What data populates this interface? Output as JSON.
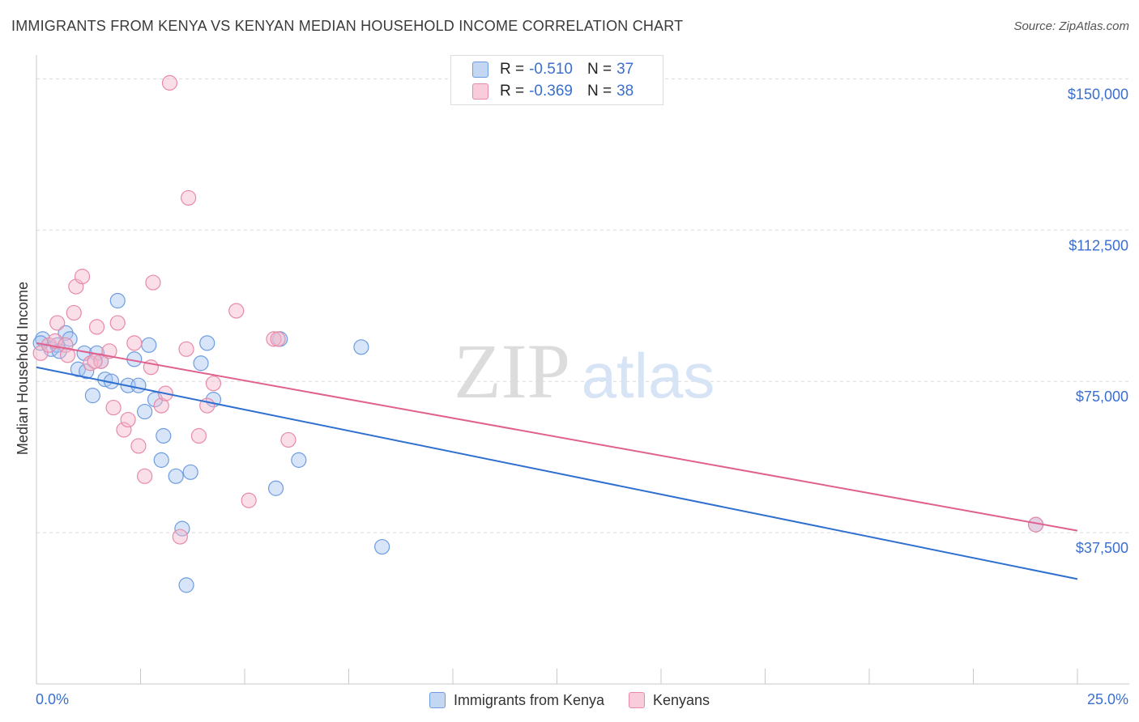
{
  "header": {
    "title": "IMMIGRANTS FROM KENYA VS KENYAN MEDIAN HOUSEHOLD INCOME CORRELATION CHART",
    "source": "Source: ZipAtlas.com"
  },
  "watermark": {
    "zip": "ZIP",
    "atlas": "atlas"
  },
  "legend": {
    "rows": [
      {
        "r_label": "R =",
        "r_value": "-0.510",
        "n_label": "N =",
        "n_value": "37"
      },
      {
        "r_label": "R =",
        "r_value": "-0.369",
        "n_label": "N =",
        "n_value": "38"
      }
    ]
  },
  "colors": {
    "blue_fill": "#a9c5ef",
    "blue_stroke": "#6d9ce0",
    "blue_line": "#2f6fd0",
    "pink_fill": "#f5b9cc",
    "pink_stroke": "#e88aa8",
    "pink_line": "#e0608e",
    "tick_text": "#3a6fd0",
    "grid": "#d9d9d9"
  },
  "chart_data": {
    "type": "scatter",
    "title": "IMMIGRANTS FROM KENYA VS KENYAN MEDIAN HOUSEHOLD INCOME CORRELATION CHART",
    "xlabel": "",
    "ylabel": "Median Household Income",
    "xlim": [
      0,
      25
    ],
    "ylim": [
      0,
      157500
    ],
    "x_tick_labels": [
      "0.0%",
      "25.0%"
    ],
    "y_ticks": [
      37500,
      75000,
      112500,
      150000
    ],
    "y_tick_labels": [
      "$37,500",
      "$75,000",
      "$112,500",
      "$150,000"
    ],
    "grid": true,
    "legend_position": "bottom-center",
    "series": [
      {
        "name": "Immigrants from Kenya",
        "color": "#6d9ce0",
        "trend": {
          "x": [
            0,
            25
          ],
          "y": [
            78500,
            26000
          ]
        },
        "points": [
          [
            0.15,
            85500
          ],
          [
            0.35,
            83000
          ],
          [
            0.5,
            84000
          ],
          [
            0.55,
            82500
          ],
          [
            0.7,
            87000
          ],
          [
            0.8,
            85500
          ],
          [
            1.0,
            78000
          ],
          [
            1.15,
            82000
          ],
          [
            1.2,
            77500
          ],
          [
            1.35,
            71500
          ],
          [
            1.45,
            82000
          ],
          [
            1.55,
            80000
          ],
          [
            1.65,
            75500
          ],
          [
            1.8,
            75000
          ],
          [
            1.95,
            95000
          ],
          [
            2.2,
            74000
          ],
          [
            2.35,
            80500
          ],
          [
            2.45,
            74000
          ],
          [
            2.6,
            67500
          ],
          [
            2.7,
            84000
          ],
          [
            2.85,
            70500
          ],
          [
            3.0,
            55500
          ],
          [
            3.05,
            61500
          ],
          [
            3.35,
            51500
          ],
          [
            3.5,
            38500
          ],
          [
            3.6,
            24500
          ],
          [
            3.7,
            52500
          ],
          [
            3.95,
            79500
          ],
          [
            4.1,
            84500
          ],
          [
            4.25,
            70500
          ],
          [
            5.75,
            48500
          ],
          [
            5.85,
            85500
          ],
          [
            6.3,
            55500
          ],
          [
            7.8,
            83500
          ],
          [
            8.3,
            34000
          ],
          [
            24.0,
            39500
          ],
          [
            0.1,
            84500
          ]
        ]
      },
      {
        "name": "Kenyans",
        "color": "#e88aa8",
        "trend": {
          "x": [
            0,
            25
          ],
          "y": [
            84500,
            38000
          ]
        },
        "points": [
          [
            0.1,
            82000
          ],
          [
            0.3,
            84000
          ],
          [
            0.45,
            85000
          ],
          [
            0.5,
            89500
          ],
          [
            0.7,
            84000
          ],
          [
            0.75,
            81500
          ],
          [
            0.9,
            92000
          ],
          [
            0.95,
            98500
          ],
          [
            1.1,
            101000
          ],
          [
            1.3,
            79500
          ],
          [
            1.45,
            88500
          ],
          [
            1.55,
            80000
          ],
          [
            1.75,
            82500
          ],
          [
            1.85,
            68500
          ],
          [
            1.95,
            89500
          ],
          [
            2.1,
            63000
          ],
          [
            2.2,
            65500
          ],
          [
            2.35,
            84500
          ],
          [
            2.45,
            59000
          ],
          [
            2.6,
            51500
          ],
          [
            2.75,
            78500
          ],
          [
            2.8,
            99500
          ],
          [
            3.0,
            69000
          ],
          [
            3.1,
            72000
          ],
          [
            3.2,
            149000
          ],
          [
            3.45,
            36500
          ],
          [
            3.6,
            83000
          ],
          [
            3.65,
            120500
          ],
          [
            3.9,
            61500
          ],
          [
            4.1,
            69000
          ],
          [
            4.25,
            74500
          ],
          [
            4.8,
            92500
          ],
          [
            5.1,
            45500
          ],
          [
            5.7,
            85500
          ],
          [
            5.8,
            85500
          ],
          [
            6.05,
            60500
          ],
          [
            24.0,
            39500
          ],
          [
            1.4,
            80000
          ]
        ]
      }
    ]
  }
}
